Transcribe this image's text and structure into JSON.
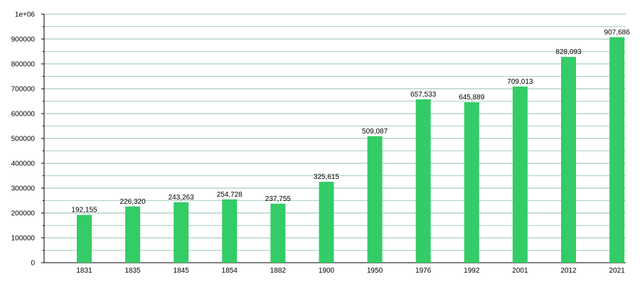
{
  "chart_data": {
    "type": "bar",
    "categories": [
      "1831",
      "1835",
      "1845",
      "1854",
      "1882",
      "1900",
      "1950",
      "1976",
      "1992",
      "2001",
      "2012",
      "2021"
    ],
    "values": [
      192155,
      226320,
      243263,
      254728,
      237755,
      325615,
      509087,
      657533,
      645889,
      709013,
      828093,
      907686
    ],
    "value_labels": [
      "192,155",
      "226,320",
      "243,263",
      "254,728",
      "237,755",
      "325,615",
      "509,087",
      "657,533",
      "645,889",
      "709,013",
      "828,093",
      "907,686"
    ],
    "title": "",
    "xlabel": "",
    "ylabel": "",
    "ylim": [
      0,
      1000000
    ],
    "y_ticks": [
      0,
      100000,
      200000,
      300000,
      400000,
      500000,
      600000,
      700000,
      800000,
      900000,
      1000000
    ],
    "y_tick_labels": [
      "0",
      "100000",
      "200000",
      "300000",
      "400000",
      "500000",
      "600000",
      "700000",
      "800000",
      "900000",
      "1e+06"
    ],
    "grid": true,
    "bar_color": "#33cc66",
    "grid_color": "#8fbfa9",
    "axis_color": "#000000"
  }
}
